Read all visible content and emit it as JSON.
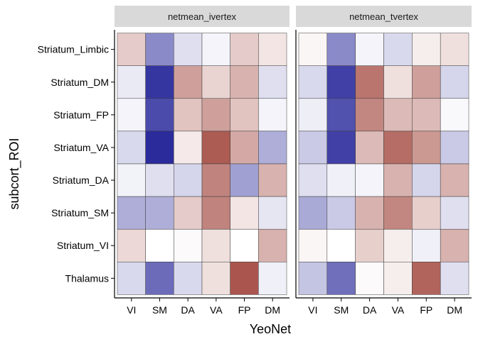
{
  "chart_data": {
    "type": "heatmap",
    "xlabel": "YeoNet",
    "ylabel": "subcort_ROI",
    "x_categories": [
      "VI",
      "SM",
      "DA",
      "VA",
      "FP",
      "DM"
    ],
    "y_categories": [
      "Striatum_Limbic",
      "Striatum_DM",
      "Striatum_FP",
      "Striatum_VA",
      "Striatum_DA",
      "Striatum_SM",
      "Striatum_VI",
      "Thalamus"
    ],
    "color_scale": {
      "low": "#2b2b9c",
      "mid": "#ffffff",
      "high": "#a8534a"
    },
    "value_note": "relative fill intensity, -1 (blue) to +1 (red)",
    "panels": [
      {
        "title": "netmean_ivertex",
        "values": [
          [
            0.3,
            -0.55,
            -0.15,
            -0.05,
            0.3,
            0.15
          ],
          [
            -0.1,
            -0.95,
            0.55,
            0.25,
            0.45,
            -0.15
          ],
          [
            -0.05,
            -0.85,
            0.35,
            0.55,
            0.35,
            -0.05
          ],
          [
            -0.18,
            -1.0,
            0.12,
            0.95,
            0.5,
            -0.38
          ],
          [
            -0.06,
            -0.15,
            -0.2,
            0.72,
            -0.45,
            0.45
          ],
          [
            -0.38,
            -0.38,
            0.3,
            0.72,
            0.15,
            -0.12
          ],
          [
            0.22,
            0.0,
            0.03,
            0.18,
            0.0,
            0.45
          ],
          [
            -0.18,
            -0.7,
            -0.18,
            0.18,
            0.98,
            -0.07
          ]
        ]
      },
      {
        "title": "netmean_tvertex",
        "values": [
          [
            0.05,
            -0.55,
            -0.05,
            -0.18,
            0.1,
            0.18
          ],
          [
            -0.18,
            -0.9,
            0.8,
            0.18,
            0.55,
            -0.2
          ],
          [
            -0.08,
            -0.82,
            0.7,
            0.4,
            0.4,
            -0.03
          ],
          [
            -0.25,
            -0.9,
            0.4,
            0.85,
            0.6,
            -0.25
          ],
          [
            -0.15,
            -0.07,
            -0.05,
            0.45,
            -0.2,
            0.45
          ],
          [
            -0.4,
            -0.25,
            0.45,
            0.7,
            0.28,
            -0.15
          ],
          [
            0.05,
            0.0,
            0.28,
            0.1,
            -0.07,
            0.45
          ],
          [
            -0.28,
            -0.68,
            0.03,
            0.1,
            0.9,
            -0.15
          ]
        ]
      }
    ]
  }
}
